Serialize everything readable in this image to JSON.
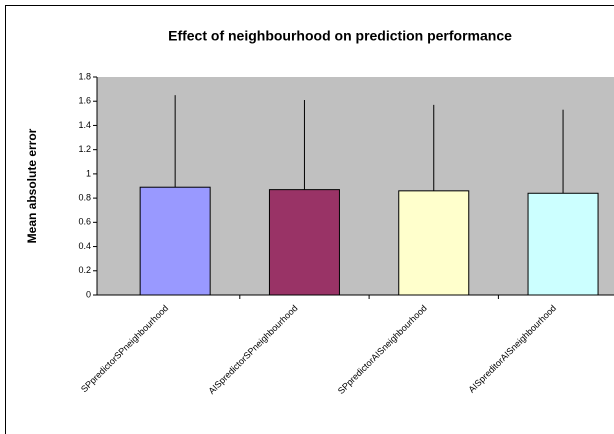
{
  "chart_data": {
    "type": "bar",
    "title": "Effect of neighbourhood on prediction performance",
    "y_label": "Mean absolute error",
    "categories": [
      "SPpredictorSPneighbourhood",
      "AISpredictorSPneighbourhood",
      "SPpredictorAISneighbourhood",
      "AISpreditorAISneighbourhood"
    ],
    "values": [
      0.89,
      0.87,
      0.86,
      0.84
    ],
    "errors": [
      0.76,
      0.74,
      0.71,
      0.69
    ],
    "colors": [
      "#9999ff",
      "#993366",
      "#ffffcc",
      "#ccffff"
    ],
    "ylim": [
      0,
      1.8
    ],
    "yticks": [
      0,
      0.2,
      0.4,
      0.6,
      0.8,
      1,
      1.2,
      1.4,
      1.6,
      1.8
    ],
    "grid": false
  }
}
